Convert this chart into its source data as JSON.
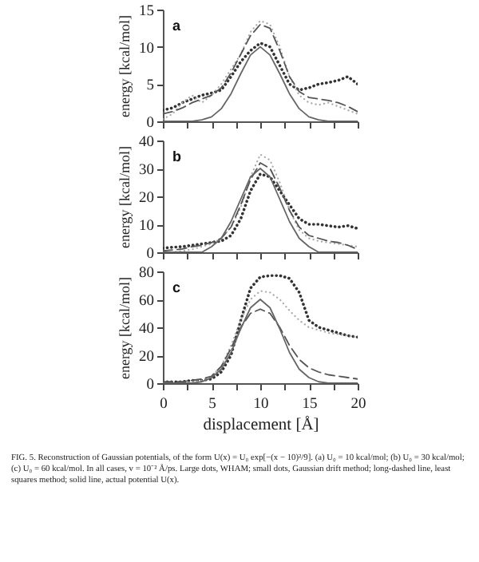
{
  "chart_data": [
    {
      "type": "line",
      "ylabel": "energy [kcal/mol]",
      "annotations": [
        "a"
      ],
      "x": [
        0,
        1,
        2,
        3,
        4,
        5,
        6,
        7,
        8,
        9,
        10,
        11,
        12,
        13,
        14,
        15,
        16,
        17,
        18,
        19,
        20
      ],
      "xlim": [
        0,
        20
      ],
      "xticks": [
        {
          "value": 0,
          "label": null
        },
        {
          "value": 2.5,
          "label": null
        },
        {
          "value": 5,
          "label": null
        },
        {
          "value": 7.5,
          "label": null
        },
        {
          "value": 10,
          "label": null
        },
        {
          "value": 12.5,
          "label": null
        },
        {
          "value": 15,
          "label": null
        },
        {
          "value": 17.5,
          "label": null
        },
        {
          "value": 20,
          "label": null
        }
      ],
      "ylim": [
        0,
        15
      ],
      "yticks": [
        0,
        5,
        10,
        15
      ],
      "tick_labels": "y",
      "grid": false,
      "series": [
        {
          "color": "#333333",
          "line_style": "dotted",
          "values": [
            1.5,
            1.8,
            2.5,
            3,
            3.5,
            3.8,
            4.2,
            6,
            8,
            9.5,
            10.5,
            10,
            7.5,
            5,
            4.2,
            4.5,
            5,
            5.2,
            5.5,
            6,
            5
          ]
        },
        {
          "color": "#aaaaaa",
          "line_style": "dotted",
          "values": [
            0.3,
            1,
            2.5,
            3.5,
            2.5,
            3.5,
            5,
            7,
            9,
            12,
            13.5,
            13,
            10,
            6,
            3.5,
            2.5,
            2.2,
            2.5,
            2,
            1.5,
            1
          ]
        },
        {
          "color": "#555555",
          "line_style": "dashed",
          "values": [
            1,
            1.3,
            1.8,
            2.5,
            3,
            3.5,
            4.5,
            6.5,
            9,
            11.5,
            13,
            12.5,
            9.5,
            6,
            4,
            3.2,
            3,
            2.8,
            2.5,
            2,
            1.3
          ]
        },
        {
          "color": "#666666",
          "line_style": "solid",
          "values": [
            0,
            0,
            0,
            0,
            0.2,
            0.6,
            1.7,
            3.7,
            6.4,
            8.9,
            10,
            8.9,
            6.4,
            3.7,
            1.7,
            0.6,
            0.2,
            0,
            0,
            0,
            0
          ]
        }
      ]
    },
    {
      "type": "line",
      "ylabel": "energy [kcal/mol]",
      "annotations": [
        "b"
      ],
      "x": [
        0,
        1,
        2,
        3,
        4,
        5,
        6,
        7,
        8,
        9,
        10,
        11,
        12,
        13,
        14,
        15,
        16,
        17,
        18,
        19,
        20
      ],
      "xlim": [
        0,
        20
      ],
      "xticks": [
        {
          "value": 0,
          "label": null
        },
        {
          "value": 2.5,
          "label": null
        },
        {
          "value": 5,
          "label": null
        },
        {
          "value": 7.5,
          "label": null
        },
        {
          "value": 10,
          "label": null
        },
        {
          "value": 12.5,
          "label": null
        },
        {
          "value": 15,
          "label": null
        },
        {
          "value": 17.5,
          "label": null
        },
        {
          "value": 20,
          "label": null
        }
      ],
      "ylim": [
        0,
        40
      ],
      "yticks": [
        0,
        10,
        20,
        30,
        40
      ],
      "tick_labels": "y",
      "grid": false,
      "series": [
        {
          "color": "#333333",
          "line_style": "dotted",
          "values": [
            1.5,
            1.8,
            2,
            2.5,
            3,
            3.5,
            4,
            6,
            12,
            22,
            28,
            27,
            22,
            17,
            12,
            10,
            10,
            9.5,
            9,
            9.5,
            8.5
          ]
        },
        {
          "color": "#aaaaaa",
          "line_style": "dotted",
          "values": [
            0,
            0,
            0.5,
            1,
            2,
            3,
            5,
            9,
            16,
            27,
            35,
            33,
            25,
            15,
            8,
            5,
            4,
            3.5,
            3,
            2.5,
            2
          ]
        },
        {
          "color": "#555555",
          "line_style": "dashed",
          "values": [
            0.5,
            0.8,
            1.2,
            2,
            2.5,
            3.5,
            5,
            9,
            17,
            26,
            32,
            30,
            23,
            15,
            9,
            6,
            5,
            4,
            3.5,
            2.5,
            1
          ]
        },
        {
          "color": "#666666",
          "line_style": "solid",
          "values": [
            0,
            0,
            0,
            0,
            0,
            2,
            5,
            11,
            19,
            27,
            30,
            27,
            19,
            11,
            5,
            2,
            0,
            0,
            0,
            0,
            0
          ]
        }
      ]
    },
    {
      "type": "line",
      "xlabel": "displacement [Å]",
      "ylabel": "energy [kcal/mol]",
      "annotations": [
        "c",
        "FIG. 5.  Reconstruction of Gaussian potentials, of the form U(x) = U₀ exp[−(x − 10)²/9]. (a) U₀ = 10 kcal/mol; (b) U₀ = 30 kcal/mol; (c) U₀ = 60 kcal/mol. In all cases, v = 10⁻² Å/ps. Large dots, WHAM; small dots, Gaussian drift method; long-dashed line, least squares method; solid line, actual potential U(x)."
      ],
      "x": [
        0,
        1,
        2,
        3,
        4,
        5,
        6,
        7,
        8,
        9,
        10,
        11,
        12,
        13,
        14,
        15,
        16,
        17,
        18,
        19,
        20
      ],
      "xlim": [
        0,
        20
      ],
      "xticks": [
        0,
        {
          "value": 2.5,
          "label": null
        },
        5,
        {
          "value": 7.5,
          "label": null
        },
        10,
        {
          "value": 12.5,
          "label": null
        },
        15,
        {
          "value": 17.5,
          "label": null
        },
        20
      ],
      "ylim": [
        0,
        80
      ],
      "yticks": [
        0,
        20,
        40,
        60,
        80
      ],
      "grid": false,
      "series": [
        {
          "color": "#333333",
          "line_style": "dotted",
          "values": [
            1,
            1,
            1,
            2,
            2,
            3,
            8,
            20,
            45,
            68,
            76,
            77,
            77,
            75,
            65,
            45,
            40,
            38,
            36,
            34,
            33
          ]
        },
        {
          "color": "#aaaaaa",
          "line_style": "dotted",
          "values": [
            0,
            0,
            0,
            1,
            2,
            5,
            12,
            27,
            45,
            60,
            66,
            65,
            60,
            52,
            45,
            40,
            38,
            36,
            35,
            34,
            33
          ]
        },
        {
          "color": "#555555",
          "line_style": "dashed",
          "values": [
            1,
            1,
            1,
            2,
            3,
            5,
            12,
            25,
            40,
            50,
            53,
            50,
            40,
            27,
            17,
            11,
            8,
            6,
            5,
            4,
            3
          ]
        },
        {
          "color": "#666666",
          "line_style": "solid",
          "values": [
            0,
            0,
            0,
            0,
            1,
            4,
            10,
            22,
            39,
            54,
            60,
            54,
            39,
            22,
            10,
            4,
            1,
            0,
            0,
            0,
            0
          ]
        }
      ]
    }
  ]
}
